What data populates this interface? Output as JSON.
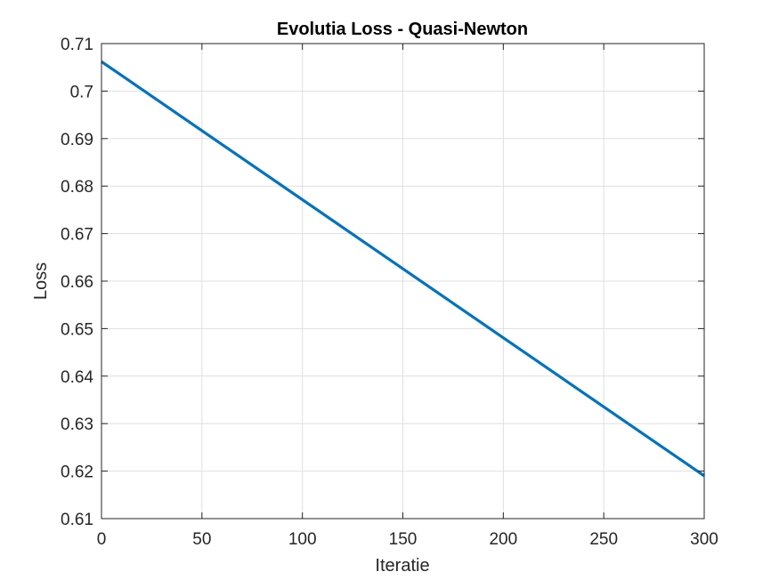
{
  "chart_data": {
    "type": "line",
    "title": "Evolutia Loss - Quasi-Newton",
    "xlabel": "Iteratie",
    "ylabel": "Loss",
    "xlim": [
      0,
      300
    ],
    "ylim": [
      0.61,
      0.71
    ],
    "xticks": [
      0,
      50,
      100,
      150,
      200,
      250,
      300
    ],
    "yticks": [
      0.61,
      0.62,
      0.63,
      0.64,
      0.65,
      0.66,
      0.67,
      0.68,
      0.69,
      0.7,
      0.71
    ],
    "xtick_labels": [
      "0",
      "50",
      "100",
      "150",
      "200",
      "250",
      "300"
    ],
    "ytick_labels": [
      "0.61",
      "0.62",
      "0.63",
      "0.64",
      "0.65",
      "0.66",
      "0.67",
      "0.68",
      "0.69",
      "0.7",
      "0.71"
    ],
    "grid": true,
    "box": true,
    "series": [
      {
        "color": "#0072BD",
        "x": [
          0,
          300
        ],
        "y": [
          0.7062,
          0.619
        ]
      }
    ]
  }
}
